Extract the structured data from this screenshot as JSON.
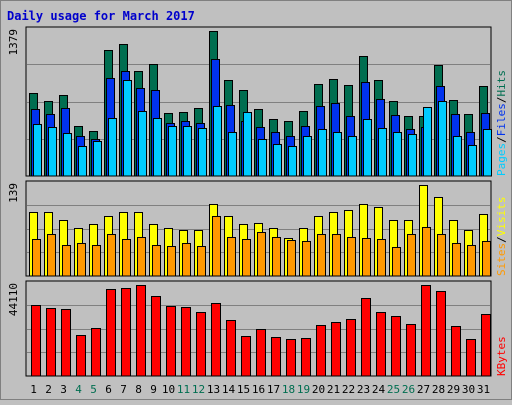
{
  "colors": {
    "background": "#c0c0c0",
    "plot_bg": "#c0c0c0",
    "frame": "#000000",
    "grid": "#808080",
    "title": "#0000cc",
    "hits": "#006e50",
    "files": "#0033ee",
    "pages": "#00ccff",
    "visits": "#ffff00",
    "sites": "#ff9900",
    "kbytes": "#ff0000",
    "weekend_label": "#006e50",
    "weekday_label": "#000000"
  },
  "chart_data": {
    "type": "bar",
    "title": "Daily usage for March 2017",
    "days": [
      "1",
      "2",
      "3",
      "4",
      "5",
      "6",
      "7",
      "8",
      "9",
      "10",
      "11",
      "12",
      "13",
      "14",
      "15",
      "16",
      "17",
      "18",
      "19",
      "20",
      "21",
      "22",
      "23",
      "24",
      "25",
      "26",
      "27",
      "28",
      "29",
      "30",
      "31"
    ],
    "weekend_days": [
      "4",
      "5",
      "11",
      "12",
      "18",
      "19",
      "25",
      "26"
    ],
    "panels": [
      {
        "name": "hits-files-pages",
        "ymax_label": "1379",
        "ymax": 1379,
        "legend": [
          {
            "text": "Pages",
            "color_key": "pages"
          },
          {
            "text": "/",
            "color_key": "frame"
          },
          {
            "text": "Files",
            "color_key": "files"
          },
          {
            "text": "/",
            "color_key": "frame"
          },
          {
            "text": "Hits",
            "color_key": "hits"
          }
        ],
        "series": [
          {
            "name": "Hits",
            "color_key": "hits",
            "values": [
              785,
              711,
              775,
              475,
              431,
              1203,
              1260,
              1000,
              1068,
              596,
              609,
              648,
              1379,
              910,
              815,
              641,
              541,
              525,
              617,
              876,
              926,
              866,
              1144,
              909,
              713,
              569,
              574,
              1055,
              727,
              594,
              852
            ]
          },
          {
            "name": "Files",
            "color_key": "files",
            "values": [
              640,
              585,
              644,
              383,
              355,
              930,
              999,
              837,
              814,
              503,
              524,
              507,
              1109,
              677,
              527,
              469,
              414,
              385,
              480,
              668,
              698,
              574,
              898,
              737,
              583,
              451,
              469,
              858,
              594,
              419,
              598
            ]
          },
          {
            "name": "Pages",
            "color_key": "pages",
            "values": [
              493,
              465,
              413,
              289,
              337,
              552,
              909,
              618,
              555,
              471,
              473,
              460,
              667,
              422,
              604,
              354,
              309,
              283,
              378,
              443,
              422,
              380,
              545,
              461,
              422,
              403,
              658,
              709,
              379,
              291,
              450
            ]
          }
        ]
      },
      {
        "name": "visits-sites",
        "ymax_label": "139",
        "ymax": 139,
        "legend": [
          {
            "text": "Sites",
            "color_key": "sites"
          },
          {
            "text": "/",
            "color_key": "frame"
          },
          {
            "text": "Visits",
            "color_key": "visits"
          }
        ],
        "series": [
          {
            "name": "Visits",
            "color_key": "visits",
            "values": [
              98,
              98,
              86,
              73,
              80,
              92,
              97,
              98,
              80,
              73,
              70,
              70,
              110,
              91,
              79,
              81,
              73,
              58,
              73,
              91,
              97,
              101,
              110,
              105,
              85,
              85,
              139,
              121,
              85,
              70,
              94
            ]
          },
          {
            "name": "Sites",
            "color_key": "sites",
            "values": [
              57,
              64,
              48,
              50,
              48,
              64,
              57,
              60,
              47,
              46,
              50,
              46,
              91,
              59,
              57,
              67,
              59,
              55,
              54,
              64,
              64,
              60,
              58,
              57,
              45,
              64,
              75,
              64,
              51,
              48,
              54
            ]
          }
        ]
      },
      {
        "name": "kbytes",
        "ymax_label": "44110",
        "ymax": 44110,
        "legend": [
          {
            "text": "KBytes",
            "color_key": "kbytes"
          }
        ],
        "series": [
          {
            "name": "KBytes",
            "color_key": "kbytes",
            "values": [
              34224,
              32779,
              32330,
              19764,
              23393,
              42129,
              42892,
              44110,
              38580,
              33923,
              33561,
              30964,
              35456,
              27035,
              19161,
              22542,
              19019,
              17925,
              18201,
              24941,
              26051,
              27816,
              37809,
              30830,
              28917,
              25038,
              44110,
              41176,
              24391,
              17966,
              30151
            ]
          }
        ]
      }
    ]
  }
}
